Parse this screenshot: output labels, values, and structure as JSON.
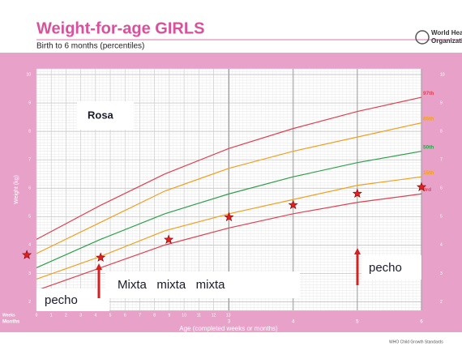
{
  "chart_data": {
    "type": "line",
    "title": "Weight-for-age GIRLS",
    "subtitle": "Birth to 6 months (percentiles)",
    "org_lines": [
      "World Health",
      "Organization"
    ],
    "y_label": "Weight (kg)",
    "x_label": "Age (completed weeks or months)",
    "week_axis_label": "Weeks",
    "month_axis_label": "Months",
    "footer": "WHO Child Growth Standards",
    "xlim": [
      0,
      6
    ],
    "ylim": [
      1.7,
      10.2
    ],
    "yticks": [
      2,
      3,
      4,
      5,
      6,
      7,
      8,
      9,
      10
    ],
    "xticks": [
      3,
      4,
      5,
      6
    ],
    "week_ticks": [
      0,
      {
        "value": 0.23,
        "label": "1"
      },
      {
        "value": 0.46,
        "label": "2"
      },
      {
        "value": 0.69,
        "label": "3"
      },
      {
        "value": 0.92,
        "label": "4"
      },
      {
        "value": 1.15,
        "label": "5"
      },
      {
        "value": 1.38,
        "label": "6"
      },
      {
        "value": 1.61,
        "label": "7"
      },
      {
        "value": 1.84,
        "label": "8"
      },
      {
        "value": 2.07,
        "label": "9"
      },
      {
        "value": 2.3,
        "label": "10"
      },
      {
        "value": 2.53,
        "label": "11"
      },
      {
        "value": 2.76,
        "label": "12"
      },
      {
        "value": 2.99,
        "label": "13"
      }
    ],
    "grid": true,
    "x": [
      0,
      1,
      2,
      3,
      4,
      5,
      6
    ],
    "series": [
      {
        "name": "97th",
        "color": "#e0404f",
        "values": [
          4.2,
          5.4,
          6.5,
          7.4,
          8.1,
          8.7,
          9.2
        ]
      },
      {
        "name": "85th",
        "color": "#f0a020",
        "values": [
          3.7,
          4.8,
          5.9,
          6.7,
          7.3,
          7.8,
          8.3
        ]
      },
      {
        "name": "50th",
        "color": "#2ea04a",
        "values": [
          3.2,
          4.2,
          5.1,
          5.8,
          6.4,
          6.9,
          7.3
        ]
      },
      {
        "name": "15th",
        "color": "#f0a020",
        "values": [
          2.8,
          3.6,
          4.5,
          5.1,
          5.6,
          6.1,
          6.4
        ]
      },
      {
        "name": "3rd",
        "color": "#e0404f",
        "values": [
          2.4,
          3.2,
          4.0,
          4.6,
          5.1,
          5.5,
          5.8
        ]
      }
    ],
    "points": {
      "color": "#e02020",
      "x": [
        -0.15,
        1.0,
        2.06,
        3.0,
        4.0,
        5.0,
        6.0
      ],
      "values": [
        3.65,
        3.56,
        4.19,
        4.98,
        5.41,
        5.81,
        6.04
      ]
    },
    "annotations": [
      "Rosa",
      "pecho",
      "Mixta   mixta   mixta",
      "pecho"
    ]
  }
}
